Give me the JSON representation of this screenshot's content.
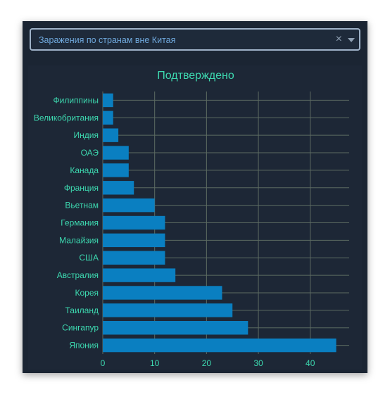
{
  "dropdown": {
    "value": "Заражения по странам вне Китая",
    "clear_icon": "×"
  },
  "colors": {
    "card_bg": "#1b2533",
    "bar": "#0a7fc1",
    "text_accent": "#3dd9b0",
    "grid": "#5d6b62"
  },
  "chart_data": {
    "type": "bar",
    "orientation": "horizontal",
    "title": "Подтверждено",
    "categories": [
      "Япония",
      "Сингапур",
      "Таиланд",
      "Корея",
      "Австралия",
      "США",
      "Малайзия",
      "Германия",
      "Вьетнам",
      "Франция",
      "Канада",
      "ОАЭ",
      "Индия",
      "Великобритания",
      "Филиппины"
    ],
    "values": [
      45,
      28,
      25,
      23,
      14,
      12,
      12,
      12,
      10,
      6,
      5,
      5,
      3,
      2,
      2
    ],
    "xticks": [
      0,
      10,
      20,
      30,
      40
    ],
    "xlim": [
      0,
      47.5
    ],
    "grid": true
  }
}
